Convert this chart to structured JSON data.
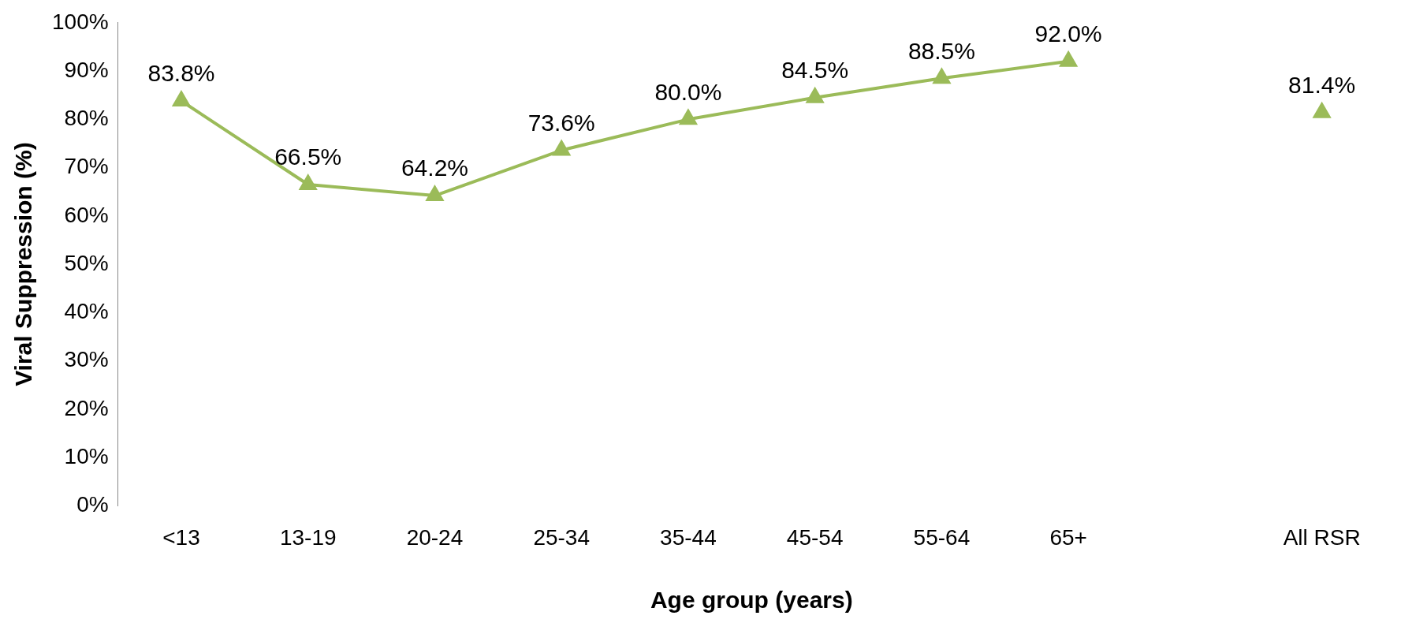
{
  "chart_data": {
    "type": "line",
    "xlabel": "Age group (years)",
    "ylabel": "Viral Suppression (%)",
    "categories": [
      "<13",
      "13-19",
      "20-24",
      "25-34",
      "35-44",
      "45-54",
      "55-64",
      "65+",
      null,
      "All RSR"
    ],
    "series": [
      {
        "color": "#9bbb59",
        "values": [
          83.8,
          66.5,
          64.2,
          73.6,
          80.0,
          84.5,
          88.5,
          92.0,
          null,
          81.4
        ]
      }
    ],
    "value_labels": [
      "83.8%",
      "66.5%",
      "64.2%",
      "73.6%",
      "80.0%",
      "84.5%",
      "88.5%",
      "92.0%",
      null,
      "81.4%"
    ],
    "ylim": [
      0,
      100
    ],
    "yticks": [
      {
        "value": 0,
        "label": "0%"
      },
      {
        "value": 10,
        "label": "10%"
      },
      {
        "value": 20,
        "label": "20%"
      },
      {
        "value": 30,
        "label": "30%"
      },
      {
        "value": 40,
        "label": "40%"
      },
      {
        "value": 50,
        "label": "50%"
      },
      {
        "value": 60,
        "label": "60%"
      },
      {
        "value": 70,
        "label": "70%"
      },
      {
        "value": 80,
        "label": "80%"
      },
      {
        "value": 90,
        "label": "90%"
      },
      {
        "value": 100,
        "label": "100%"
      }
    ],
    "grid": false,
    "legend": false,
    "marker": "triangle",
    "line_style": "solid"
  }
}
